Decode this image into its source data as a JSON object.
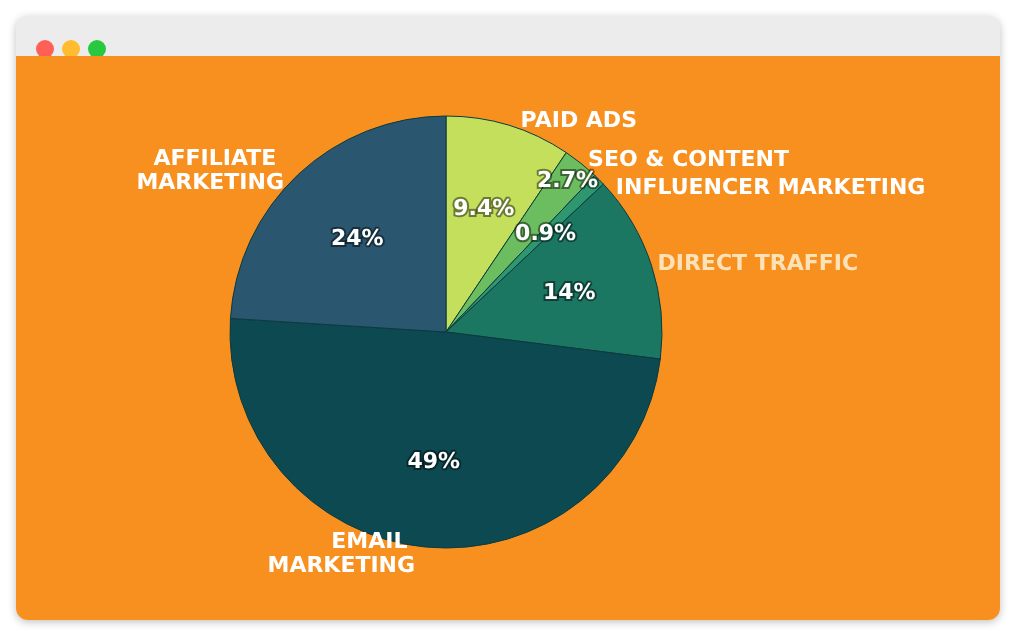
{
  "chart_data": {
    "type": "pie",
    "categories": [
      "PAID ADS",
      "SEO & CONTENT",
      "INFLUENCER MARKETING",
      "DIRECT TRAFFIC",
      "EMAIL MARKETING",
      "AFFILIATE MARKETING"
    ],
    "values": [
      9.4,
      2.7,
      0.9,
      14,
      49,
      24
    ],
    "value_labels": [
      "9.4%",
      "2.7%",
      "0.9%",
      "14%",
      "49%",
      "24%"
    ],
    "colors": [
      "#c3df5b",
      "#6cbd60",
      "#2f9770",
      "#1b7662",
      "#0c4950",
      "#2a5670"
    ]
  }
}
